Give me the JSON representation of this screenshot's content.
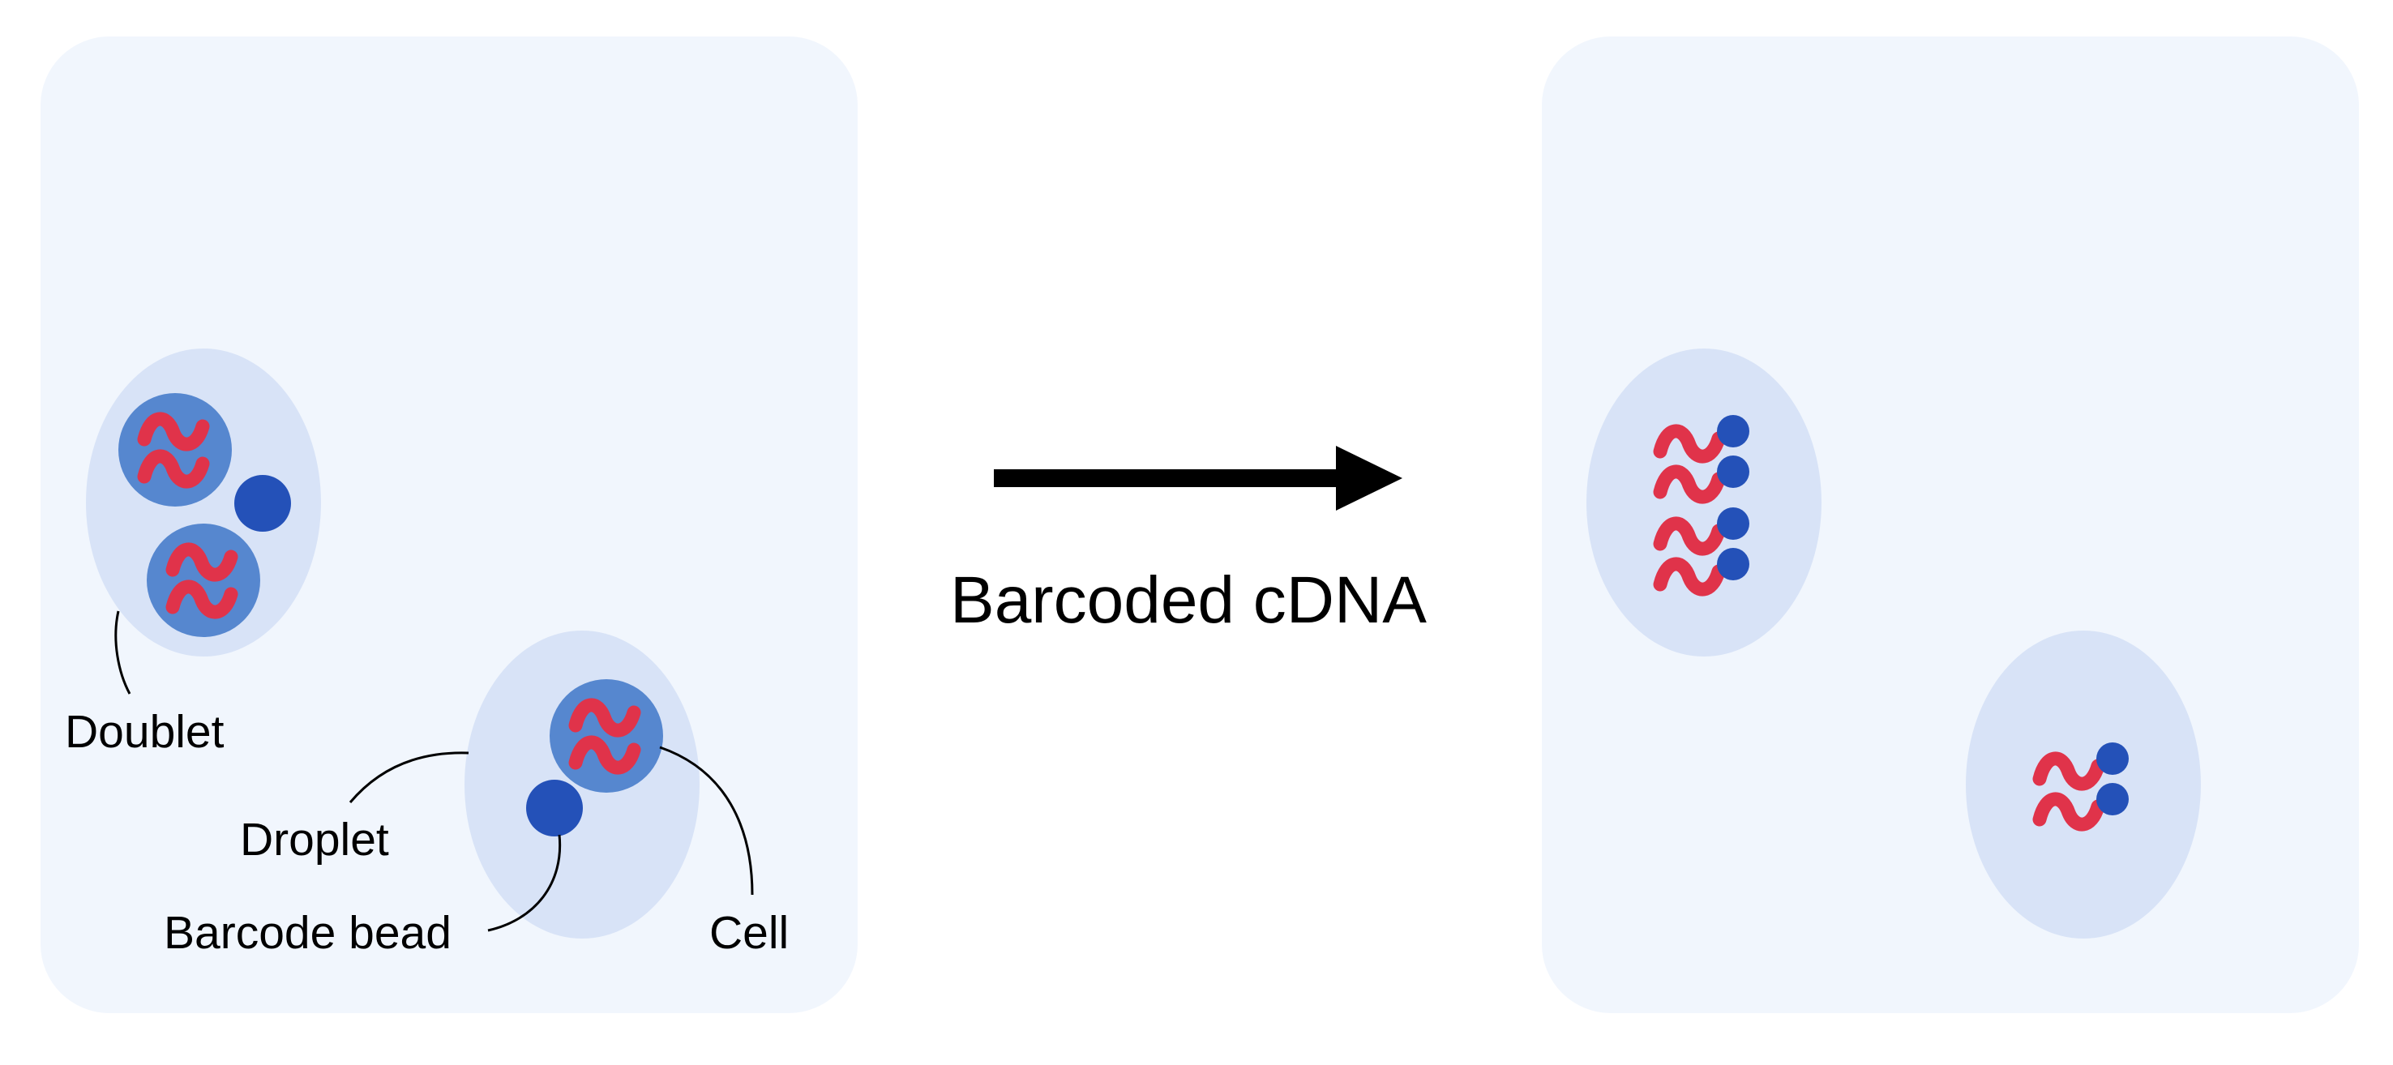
{
  "colors": {
    "background": "#ffffff",
    "panel": "#f1f6fd",
    "droplet": "#d8e3f7",
    "cell": "#5687cf",
    "bead": "#2451b8",
    "rna": "#e0334a",
    "arrow": "#000000",
    "leader_line": "#000000"
  },
  "labels": {
    "doublet": "Doublet",
    "droplet": "Droplet",
    "barcode_bead": "Barcode bead",
    "cell": "Cell"
  },
  "arrow": {
    "label": "Barcoded cDNA"
  }
}
